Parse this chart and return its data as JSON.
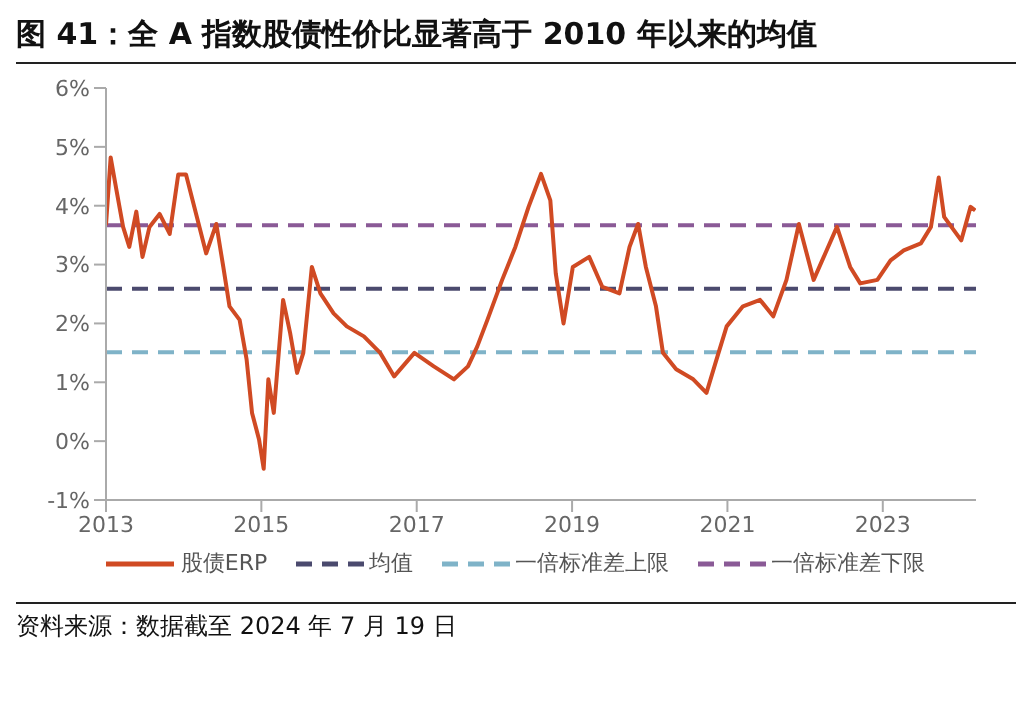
{
  "chart_data": {
    "type": "line",
    "title": "图 41：全 A 指数股债性价比显著高于 2010 年以来的均值",
    "annotations": [
      "资料来源：数据截至 2024 年 7 月 19 日"
    ],
    "x": [
      2013.0,
      2013.06,
      2013.13,
      2013.22,
      2013.3,
      2013.39,
      2013.47,
      2013.56,
      2013.69,
      2013.82,
      2013.93,
      2014.03,
      2014.16,
      2014.29,
      2014.42,
      2014.51,
      2014.59,
      2014.72,
      2014.81,
      2014.88,
      2014.97,
      2015.03,
      2015.09,
      2015.16,
      2015.28,
      2015.37,
      2015.46,
      2015.54,
      2015.65,
      2015.76,
      2015.93,
      2016.1,
      2016.32,
      2016.53,
      2016.71,
      2016.97,
      2017.22,
      2017.48,
      2017.66,
      2017.78,
      2017.91,
      2018.1,
      2018.27,
      2018.44,
      2018.6,
      2018.72,
      2018.79,
      2018.89,
      2019.01,
      2019.22,
      2019.39,
      2019.61,
      2019.74,
      2019.85,
      2019.95,
      2020.08,
      2020.17,
      2020.34,
      2020.56,
      2020.73,
      2020.86,
      2020.99,
      2021.2,
      2021.42,
      2021.59,
      2021.76,
      2021.92,
      2022.11,
      2022.24,
      2022.41,
      2022.58,
      2022.71,
      2022.93,
      2023.1,
      2023.27,
      2023.49,
      2023.62,
      2023.72,
      2023.79,
      2024.01,
      2024.13,
      2024.19
    ],
    "series": [
      {
        "name": "股债ERP",
        "color": "#d04a23",
        "values": [
          3.67,
          4.82,
          4.3,
          3.64,
          3.3,
          3.9,
          3.13,
          3.64,
          3.86,
          3.52,
          4.53,
          4.53,
          3.86,
          3.19,
          3.69,
          2.96,
          2.29,
          2.06,
          1.39,
          0.48,
          0.03,
          -0.47,
          1.05,
          0.48,
          2.4,
          1.84,
          1.16,
          1.5,
          2.96,
          2.51,
          2.17,
          1.95,
          1.78,
          1.5,
          1.1,
          1.5,
          1.27,
          1.05,
          1.27,
          1.61,
          2.06,
          2.74,
          3.3,
          3.98,
          4.54,
          4.09,
          2.85,
          2.0,
          2.96,
          3.13,
          2.62,
          2.51,
          3.3,
          3.69,
          2.96,
          2.29,
          1.5,
          1.22,
          1.05,
          0.82,
          1.39,
          1.95,
          2.29,
          2.4,
          2.12,
          2.74,
          3.69,
          2.74,
          3.13,
          3.64,
          2.96,
          2.68,
          2.74,
          3.07,
          3.24,
          3.36,
          3.64,
          4.48,
          3.81,
          3.41,
          3.98,
          3.92
        ]
      }
    ],
    "ref_lines": [
      {
        "axis": "y",
        "value": 2.59,
        "label": "均值",
        "color": "#4b4a6e",
        "line_style": "dashed"
      },
      {
        "axis": "y",
        "value": 1.51,
        "label": "一倍标准差上限",
        "color": "#7fb3c8",
        "line_style": "dashed"
      },
      {
        "axis": "y",
        "value": 3.67,
        "label": "一倍标准差下限",
        "color": "#8a5a96",
        "line_style": "dashed"
      }
    ],
    "xlim": [
      2013,
      2024.2
    ],
    "xticks": [
      2013,
      2015,
      2017,
      2019,
      2021,
      2023
    ],
    "ylim": [
      -1,
      6
    ],
    "yticks": [
      {
        "value": -1,
        "label": "-1%"
      },
      {
        "value": 0,
        "label": "0%"
      },
      {
        "value": 1,
        "label": "1%"
      },
      {
        "value": 2,
        "label": "2%"
      },
      {
        "value": 3,
        "label": "3%"
      },
      {
        "value": 4,
        "label": "4%"
      },
      {
        "value": 5,
        "label": "5%"
      },
      {
        "value": 6,
        "label": "6%"
      }
    ],
    "grid": false,
    "legend": "bottom",
    "marker": "none",
    "line_style": "solid"
  }
}
